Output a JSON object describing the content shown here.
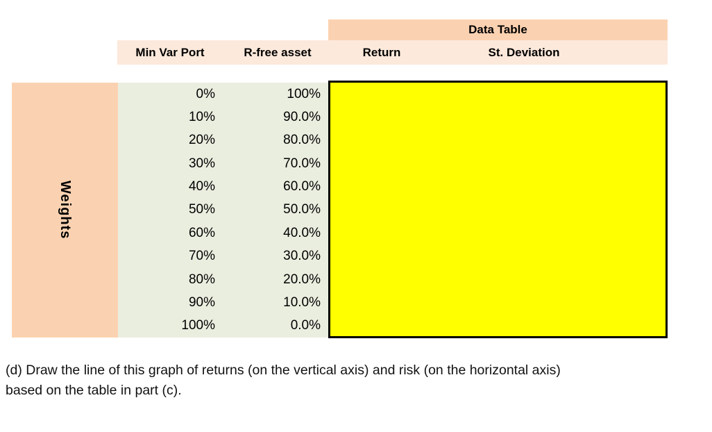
{
  "table": {
    "title": "Data Table",
    "row_label": "Weights",
    "columns": {
      "min_var_port": "Min Var Port",
      "r_free_asset": "R-free asset",
      "return": "Return",
      "st_deviation": "St. Deviation"
    },
    "rows": [
      [
        "0%",
        "100%"
      ],
      [
        "10%",
        "90.0%"
      ],
      [
        "20%",
        "80.0%"
      ],
      [
        "30%",
        "70.0%"
      ],
      [
        "40%",
        "60.0%"
      ],
      [
        "50%",
        "50.0%"
      ],
      [
        "60%",
        "40.0%"
      ],
      [
        "70%",
        "30.0%"
      ],
      [
        "80%",
        "20.0%"
      ],
      [
        "90%",
        "10.0%"
      ],
      [
        "100%",
        "0.0%"
      ]
    ]
  },
  "caption": {
    "line1": "(d) Draw the line of this graph of returns (on the vertical axis) and risk (on the horizontal axis)",
    "line2": "based on the table in part (c)."
  },
  "colors": {
    "title_band_bg": "#FBD2B1",
    "header_band_bg": "#FCE9DB",
    "weights_box_bg": "#FBD2B1",
    "values_bg": "#EAEEDF",
    "chart_fill": "#FFFF00",
    "chart_border": "#000000"
  }
}
